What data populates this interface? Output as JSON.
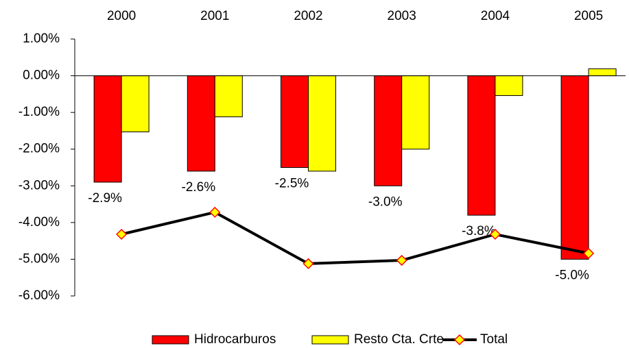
{
  "chart_data": {
    "type": "bar-line",
    "categories": [
      "2000",
      "2001",
      "2002",
      "2003",
      "2004",
      "2005"
    ],
    "series": [
      {
        "name": "Hidrocarburos",
        "type": "bar",
        "color": "#ff0000",
        "values": [
          -2.9,
          -2.6,
          -2.5,
          -3.0,
          -3.8,
          -5.0
        ],
        "value_labels": [
          "-2.9%",
          "-2.6%",
          "-2.5%",
          "-3.0%",
          "-3.8%",
          "-5.0%"
        ]
      },
      {
        "name": "Resto Cta. Crte",
        "type": "bar",
        "color": "#ffff00",
        "values": [
          -1.53,
          -1.12,
          -2.6,
          -2.0,
          -0.54,
          0.19
        ]
      },
      {
        "name": "Total",
        "type": "line",
        "color": "#000000",
        "marker_color": "#ffff00",
        "values": [
          -4.32,
          -3.72,
          -5.12,
          -5.03,
          -4.32,
          -4.84
        ]
      }
    ],
    "ylim": [
      -6,
      1
    ],
    "yticks": [
      {
        "value": 1,
        "label": "1.00%"
      },
      {
        "value": 0,
        "label": "0.00%"
      },
      {
        "value": -1,
        "label": "-1.00%"
      },
      {
        "value": -2,
        "label": "-2.00%"
      },
      {
        "value": -3,
        "label": "-3.00%"
      },
      {
        "value": -4,
        "label": "-4.00%"
      },
      {
        "value": -5,
        "label": "-5.00%"
      },
      {
        "value": -6,
        "label": "-6.00%"
      }
    ]
  }
}
